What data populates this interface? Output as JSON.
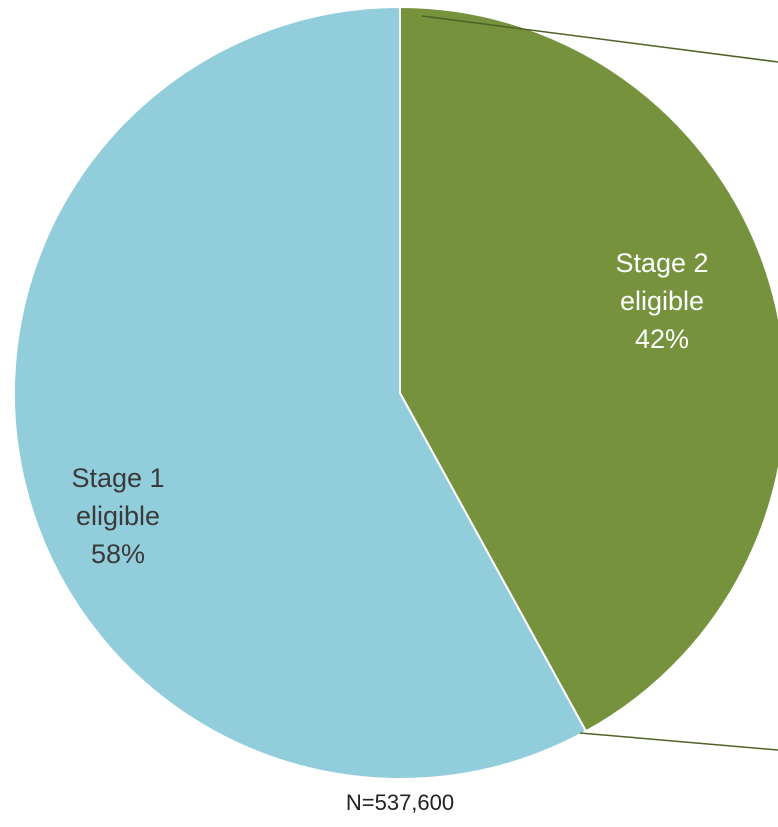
{
  "chart_data": {
    "type": "pie",
    "slices": [
      {
        "label": "Stage 2 eligible",
        "lines": [
          "Stage 2",
          "eligible",
          "42%"
        ],
        "value": 42,
        "color": "#76923c",
        "text_color": "#ffffff"
      },
      {
        "label": "Stage 1 eligible",
        "lines": [
          "Stage 1",
          "eligible",
          "58%"
        ],
        "value": 58,
        "color": "#92cddc",
        "text_color": "#3a3a3a"
      }
    ],
    "annotation": "N=537,600",
    "leader_line_color": "#4f6228"
  }
}
